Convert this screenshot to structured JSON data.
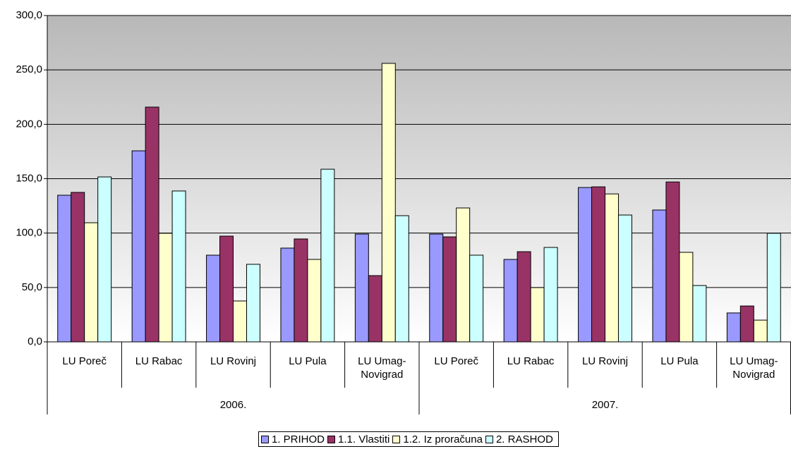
{
  "chart_data": {
    "type": "bar",
    "categories": [
      "LU Poreč",
      "LU Rabac",
      "LU Rovinj",
      "LU Pula",
      "LU Umag-\nNovigrad",
      "LU Poreč",
      "LU Rabac",
      "LU Rovinj",
      "LU Pula",
      "LU Umag-\nNovigrad"
    ],
    "category_groups": [
      "2006.",
      "2007."
    ],
    "series": [
      {
        "name": "1. PRIHOD",
        "color": "#9999ff",
        "values": [
          134.8,
          175.6,
          79.7,
          86.2,
          99.1,
          99.1,
          75.8,
          141.9,
          121.2,
          26.6
        ]
      },
      {
        "name": "1.1. Vlastiti",
        "color": "#993366",
        "values": [
          137.4,
          215.8,
          97.2,
          94.6,
          60.9,
          96.5,
          82.9,
          142.5,
          147.0,
          33.0
        ]
      },
      {
        "name": "1.2. Iz proračuna",
        "color": "#ffffcc",
        "values": [
          109.5,
          99.8,
          37.6,
          75.8,
          256.0,
          123.1,
          49.9,
          136.0,
          82.3,
          20.0
        ]
      },
      {
        "name": "2. RASHOD",
        "color": "#ccffff",
        "values": [
          151.6,
          138.7,
          71.3,
          158.7,
          116.0,
          79.7,
          86.8,
          116.6,
          51.8,
          99.8
        ]
      }
    ],
    "ylim": [
      0,
      300
    ],
    "yticks": [
      {
        "value": 0,
        "label": "0,0"
      },
      {
        "value": 50,
        "label": "50,0"
      },
      {
        "value": 100,
        "label": "100,0"
      },
      {
        "value": 150,
        "label": "150,0"
      },
      {
        "value": 200,
        "label": "200,0"
      },
      {
        "value": 250,
        "label": "250,0"
      },
      {
        "value": 300,
        "label": "300,0"
      }
    ],
    "grid": true,
    "legend": "bottom"
  }
}
